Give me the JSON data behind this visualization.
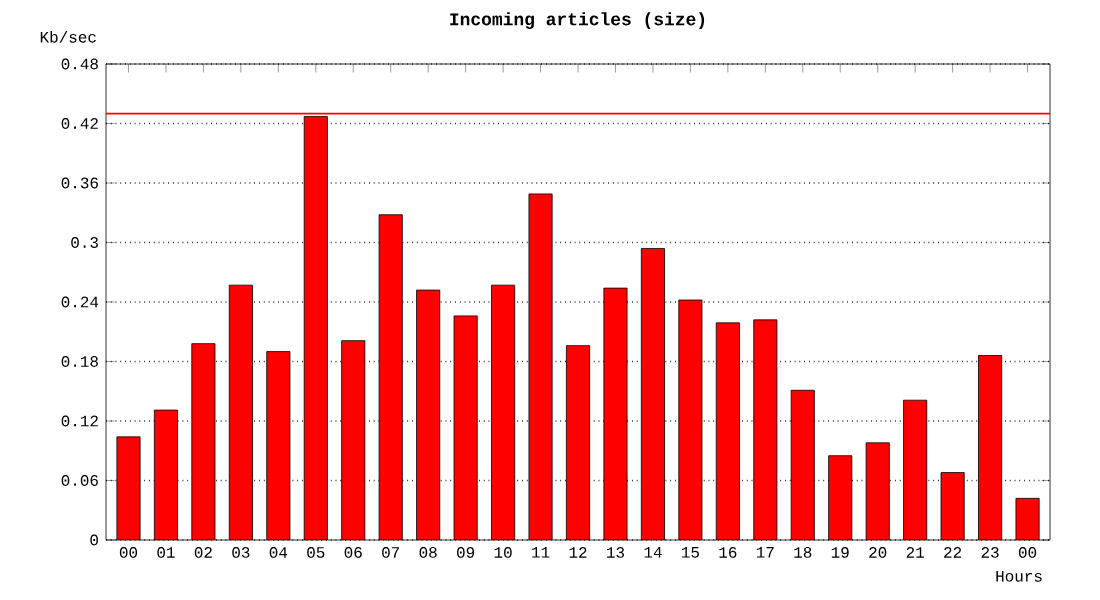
{
  "chart_data": {
    "type": "bar",
    "title": "Incoming articles (size)",
    "xlabel": "Hours",
    "ylabel": "Kb/sec",
    "categories": [
      "00",
      "01",
      "02",
      "03",
      "04",
      "05",
      "06",
      "07",
      "08",
      "09",
      "10",
      "11",
      "12",
      "13",
      "14",
      "15",
      "16",
      "17",
      "18",
      "19",
      "20",
      "21",
      "22",
      "23",
      "00"
    ],
    "values": [
      0.104,
      0.131,
      0.198,
      0.257,
      0.19,
      0.427,
      0.201,
      0.328,
      0.252,
      0.226,
      0.257,
      0.349,
      0.196,
      0.254,
      0.294,
      0.242,
      0.219,
      0.222,
      0.151,
      0.085,
      0.098,
      0.141,
      0.068,
      0.186,
      0.042
    ],
    "color": "#ff0000",
    "ylim": [
      0,
      0.48
    ],
    "yticks": [
      0,
      0.06,
      0.12,
      0.18,
      0.24,
      0.3,
      0.36,
      0.42,
      0.48
    ],
    "grid": "y",
    "ref_lines": [
      {
        "axis": "y",
        "value": 0.43,
        "color": "#ff0000"
      }
    ]
  }
}
